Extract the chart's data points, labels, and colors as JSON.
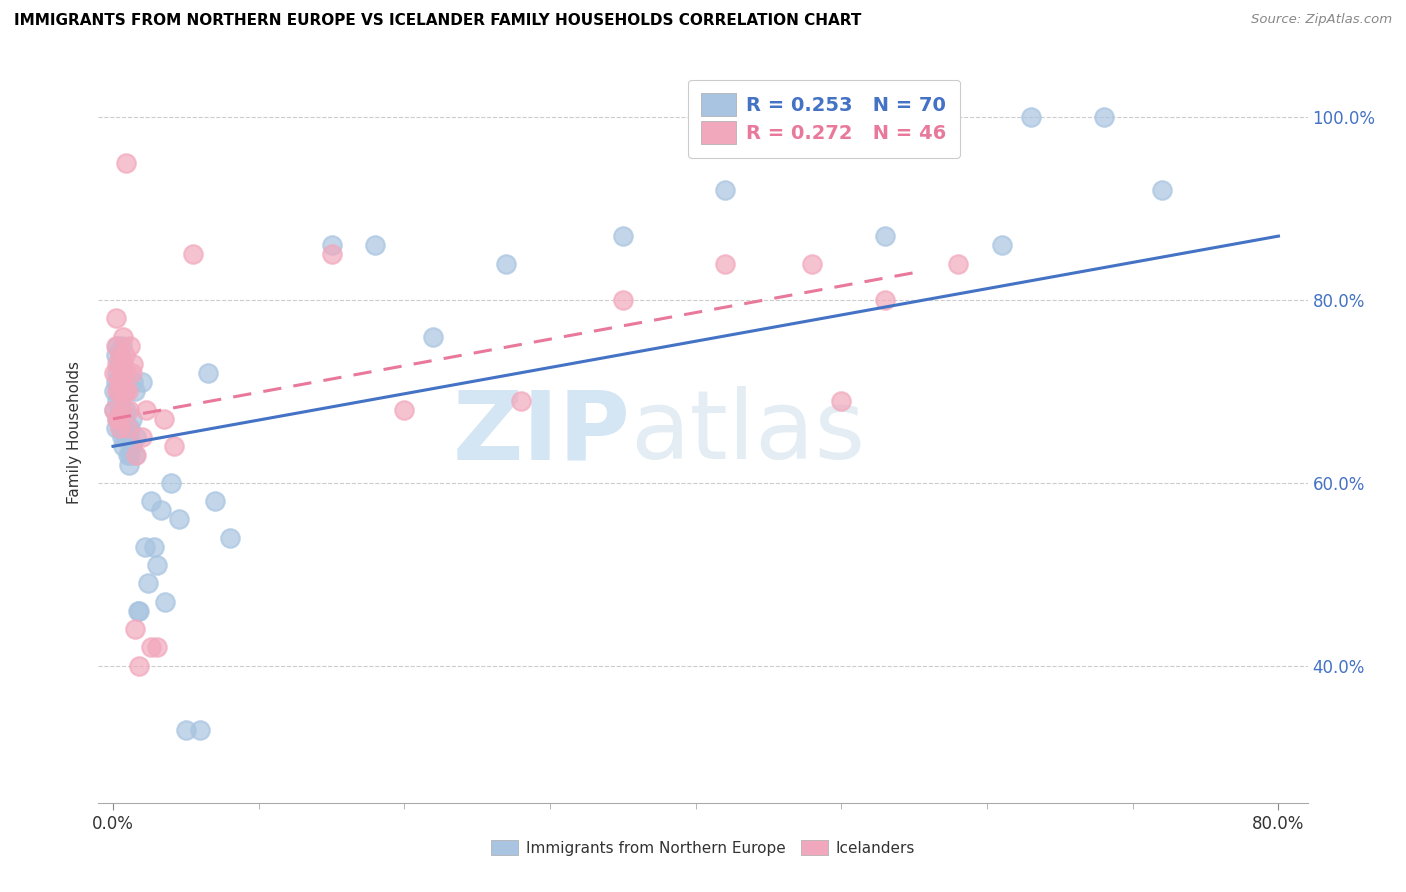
{
  "title": "IMMIGRANTS FROM NORTHERN EUROPE VS ICELANDER FAMILY HOUSEHOLDS CORRELATION CHART",
  "source": "Source: ZipAtlas.com",
  "ylabel": "Family Households",
  "legend1_label": "Immigrants from Northern Europe",
  "legend2_label": "Icelanders",
  "R1": "0.253",
  "N1": "70",
  "R2": "0.272",
  "N2": "46",
  "blue_color": "#a8c4e0",
  "pink_color": "#f2a8bc",
  "blue_line_color": "#4472c4",
  "pink_line_color": "#e8799a",
  "right_axis_color": "#4472c4",
  "watermark_zip": "ZIP",
  "watermark_atlas": "atlas",
  "grid_color": "#cccccc",
  "blue_x": [
    0.001,
    0.001,
    0.002,
    0.002,
    0.002,
    0.003,
    0.003,
    0.003,
    0.003,
    0.004,
    0.004,
    0.004,
    0.005,
    0.005,
    0.005,
    0.005,
    0.006,
    0.006,
    0.006,
    0.006,
    0.006,
    0.007,
    0.007,
    0.007,
    0.007,
    0.008,
    0.008,
    0.008,
    0.009,
    0.009,
    0.01,
    0.01,
    0.011,
    0.011,
    0.012,
    0.012,
    0.013,
    0.013,
    0.014,
    0.015,
    0.015,
    0.016,
    0.017,
    0.018,
    0.02,
    0.022,
    0.024,
    0.026,
    0.028,
    0.03,
    0.033,
    0.036,
    0.04,
    0.045,
    0.05,
    0.06,
    0.065,
    0.07,
    0.08,
    0.15,
    0.18,
    0.22,
    0.27,
    0.35,
    0.42,
    0.53,
    0.61,
    0.63,
    0.68,
    0.72
  ],
  "blue_y": [
    0.68,
    0.7,
    0.66,
    0.71,
    0.74,
    0.67,
    0.69,
    0.72,
    0.75,
    0.67,
    0.7,
    0.73,
    0.66,
    0.68,
    0.71,
    0.74,
    0.65,
    0.67,
    0.7,
    0.72,
    0.75,
    0.64,
    0.66,
    0.68,
    0.71,
    0.65,
    0.67,
    0.7,
    0.65,
    0.68,
    0.63,
    0.66,
    0.62,
    0.65,
    0.63,
    0.66,
    0.64,
    0.67,
    0.71,
    0.63,
    0.7,
    0.65,
    0.46,
    0.46,
    0.71,
    0.53,
    0.49,
    0.58,
    0.53,
    0.51,
    0.57,
    0.47,
    0.6,
    0.56,
    0.33,
    0.33,
    0.72,
    0.58,
    0.54,
    0.86,
    0.86,
    0.76,
    0.84,
    0.87,
    0.92,
    0.87,
    0.86,
    1.0,
    1.0,
    0.92
  ],
  "pink_x": [
    0.001,
    0.001,
    0.002,
    0.002,
    0.003,
    0.003,
    0.003,
    0.004,
    0.004,
    0.005,
    0.005,
    0.005,
    0.006,
    0.006,
    0.007,
    0.007,
    0.007,
    0.008,
    0.008,
    0.009,
    0.009,
    0.01,
    0.01,
    0.011,
    0.012,
    0.013,
    0.014,
    0.015,
    0.016,
    0.018,
    0.02,
    0.023,
    0.026,
    0.03,
    0.035,
    0.042,
    0.055,
    0.15,
    0.2,
    0.28,
    0.35,
    0.42,
    0.48,
    0.5,
    0.53,
    0.58
  ],
  "pink_y": [
    0.68,
    0.72,
    0.75,
    0.78,
    0.67,
    0.7,
    0.73,
    0.67,
    0.71,
    0.66,
    0.7,
    0.74,
    0.68,
    0.72,
    0.7,
    0.73,
    0.76,
    0.7,
    0.74,
    0.72,
    0.95,
    0.66,
    0.7,
    0.68,
    0.75,
    0.72,
    0.73,
    0.44,
    0.63,
    0.4,
    0.65,
    0.68,
    0.42,
    0.42,
    0.67,
    0.64,
    0.85,
    0.85,
    0.68,
    0.69,
    0.8,
    0.84,
    0.84,
    0.69,
    0.8,
    0.84
  ],
  "blue_line_x": [
    0.0,
    0.8
  ],
  "blue_line_y": [
    0.64,
    0.87
  ],
  "pink_line_x": [
    0.0,
    0.55
  ],
  "pink_line_y": [
    0.67,
    0.83
  ],
  "xlim": [
    -0.01,
    0.82
  ],
  "ylim": [
    0.25,
    1.06
  ],
  "yticks": [
    0.4,
    0.6,
    0.8,
    1.0
  ],
  "xticks": [
    0.0,
    0.8
  ],
  "minor_xticks": [
    0.1,
    0.2,
    0.3,
    0.4,
    0.5,
    0.6,
    0.7
  ]
}
